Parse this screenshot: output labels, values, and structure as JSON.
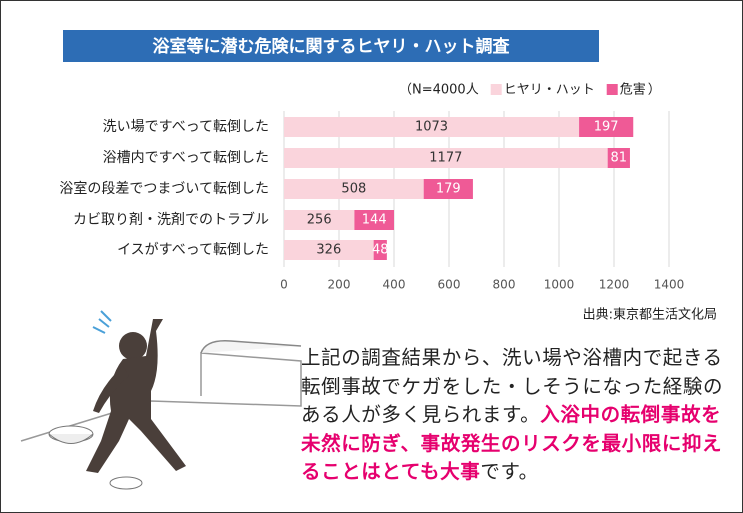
{
  "chart_data": {
    "type": "stacked-bar-horizontal",
    "title": "浴室等に潜む危険に関するヒヤリ・ハット調査",
    "legend_prefix": "（N=4000人",
    "legend_suffix": "）",
    "categories": [
      "洗い場ですべって転倒した",
      "浴槽内ですべって転倒した",
      "浴室の段差でつまづいて転倒した",
      "カビ取り剤・洗剤でのトラブル",
      "イスがすべって転倒した"
    ],
    "series": [
      {
        "name": "ヒヤリ・ハット",
        "color": "#fad4dc",
        "values": [
          1073,
          1177,
          508,
          256,
          326
        ]
      },
      {
        "name": "危害",
        "color": "#ef5a96",
        "values": [
          197,
          81,
          179,
          144,
          48
        ]
      }
    ],
    "xlim": [
      0,
      1400
    ],
    "xticks": [
      0,
      200,
      400,
      600,
      800,
      1000,
      1200,
      1400
    ],
    "grid": true,
    "source": "出典:東京都生活文化局"
  },
  "body": {
    "parts": [
      "上記の調査結果から、洗い場や浴槽内で起きる転倒事故でケガをした・しそうになった経験のある人が多く見られます。",
      "入浴中の転倒事故を未然に防ぎ、事故発生のリスクを最小限に抑えることはとても大事",
      "です。"
    ]
  }
}
